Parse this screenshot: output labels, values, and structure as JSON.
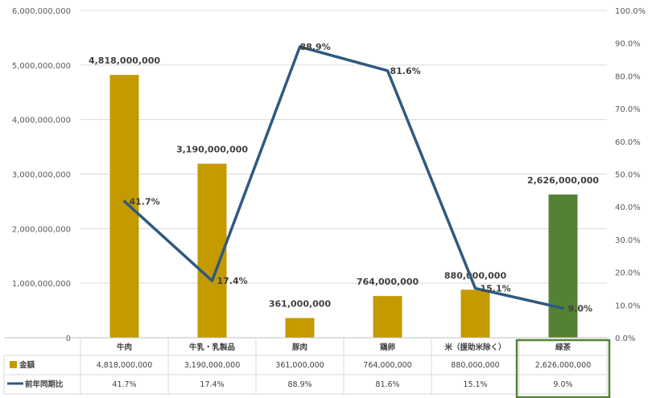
{
  "chart_data": {
    "type": "bar",
    "categories": [
      "牛肉",
      "牛乳・乳製品",
      "豚肉",
      "鶏卵",
      "米（援助米除く）",
      "緑茶"
    ],
    "series": [
      {
        "name": "金額",
        "type": "bar",
        "axis": "left",
        "values": [
          4818000000,
          3190000000,
          361000000,
          764000000,
          880000000,
          2626000000
        ],
        "labels": [
          "4,818,000,000",
          "3,190,000,000",
          "361,000,000",
          "764,000,000",
          "880,000,000",
          "2,626,000,000"
        ],
        "color": "#C49A00",
        "highlight_color": "#548235",
        "highlight_index": 5
      },
      {
        "name": "前年同期比",
        "type": "line",
        "axis": "right",
        "values": [
          41.7,
          17.4,
          88.9,
          81.6,
          15.1,
          9.0
        ],
        "labels": [
          "41.7%",
          "17.4%",
          "88.9%",
          "81.6%",
          "15.1%",
          "9.0%"
        ],
        "color": "#2E5A80"
      }
    ],
    "ylim_left": [
      0,
      6000000000
    ],
    "yticks_left": [
      "0",
      "1,000,000,000",
      "2,000,000,000",
      "3,000,000,000",
      "4,000,000,000",
      "5,000,000,000",
      "6,000,000,000"
    ],
    "ylim_right": [
      0,
      100
    ],
    "yticks_right": [
      "0.0%",
      "10.0%",
      "20.0%",
      "30.0%",
      "40.0%",
      "50.0%",
      "60.0%",
      "70.0%",
      "80.0%",
      "90.0%",
      "100.0%"
    ],
    "grid": true,
    "legend": "data-table",
    "table_highlight_color": "#548235"
  }
}
